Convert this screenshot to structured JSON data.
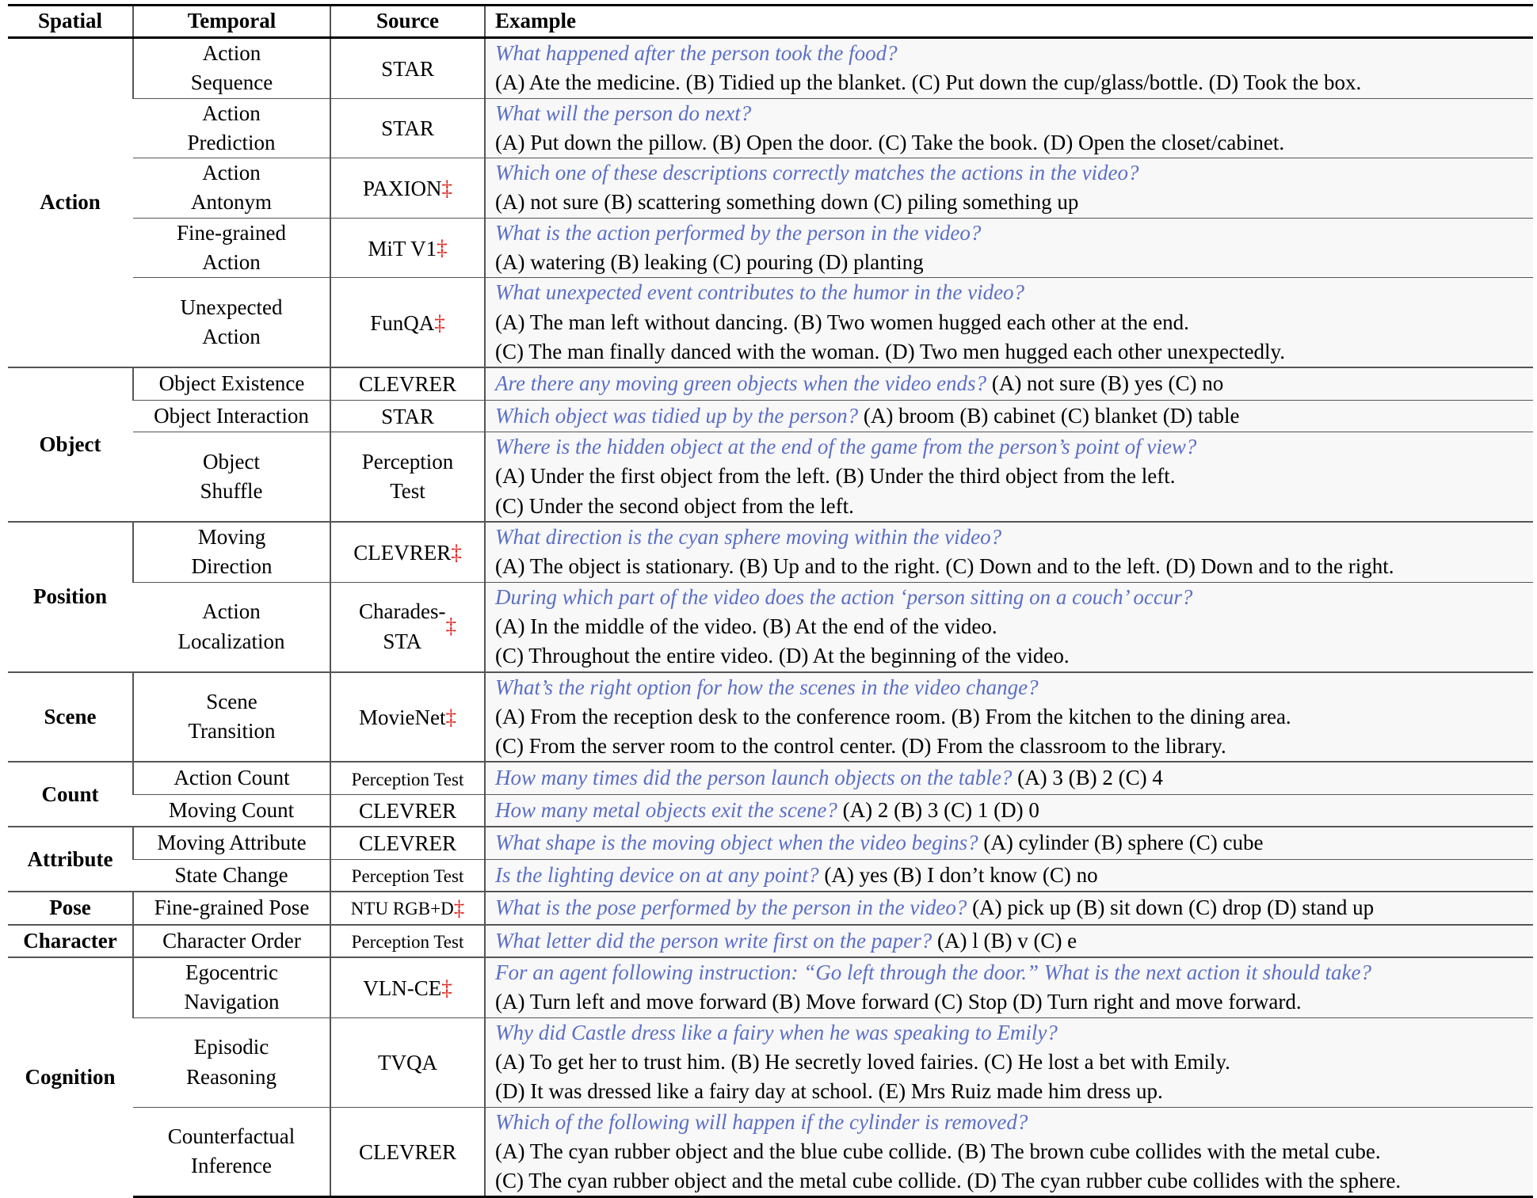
{
  "header": {
    "spatial": "Spatial",
    "temporal": "Temporal",
    "source": "Source",
    "example": "Example"
  },
  "dagger": "‡",
  "colors": {
    "question": "#5a6ec6",
    "dagger": "#e0201a",
    "example_bg": "#f8f8f8"
  },
  "groups": [
    {
      "spatial": "Action",
      "rows": [
        {
          "temporal": [
            "Action",
            "Sequence"
          ],
          "source": [
            "STAR"
          ],
          "dagger": false,
          "question": "What happened after the person took the food?",
          "options": [
            "(A) Ate the medicine. (B) Tidied up the blanket. (C) Put down the cup/glass/bottle. (D) Took the box."
          ]
        },
        {
          "temporal": [
            "Action",
            "Prediction"
          ],
          "source": [
            "STAR"
          ],
          "dagger": false,
          "question": "What will the person do next?",
          "options": [
            "(A) Put down the pillow. (B) Open the door. (C) Take the book. (D) Open the closet/cabinet."
          ]
        },
        {
          "temporal": [
            "Action",
            "Antonym"
          ],
          "source": [
            "PAXION"
          ],
          "dagger": true,
          "question": "Which one of these descriptions correctly matches the actions in the video?",
          "options": [
            "(A) not sure (B) scattering something down (C) piling something up"
          ]
        },
        {
          "temporal": [
            "Fine-grained",
            "Action"
          ],
          "source": [
            "MiT V1"
          ],
          "dagger": true,
          "question": "What is the action performed by the person in the video?",
          "options": [
            "(A) watering (B) leaking (C) pouring (D) planting"
          ]
        },
        {
          "temporal": [
            "Unexpected",
            "Action"
          ],
          "source": [
            "FunQA"
          ],
          "dagger": true,
          "question": "What unexpected event contributes to the humor in the video?",
          "options": [
            "(A) The man left without dancing. (B) Two women hugged each other at the end.",
            "(C) The man finally danced with the woman. (D) Two men hugged each other unexpectedly."
          ]
        }
      ]
    },
    {
      "spatial": "Object",
      "rows": [
        {
          "temporal": [
            "Object Existence"
          ],
          "source": [
            "CLEVRER"
          ],
          "dagger": false,
          "inline": true,
          "question": "Are there any moving green objects when the video ends?",
          "options": [
            "(A) not sure (B) yes (C) no"
          ]
        },
        {
          "temporal": [
            "Object Interaction"
          ],
          "source": [
            "STAR"
          ],
          "dagger": false,
          "inline": true,
          "question": "Which object was tidied up by the person?",
          "options": [
            "(A) broom (B) cabinet (C) blanket (D) table"
          ]
        },
        {
          "temporal": [
            "Object",
            "Shuffle"
          ],
          "source": [
            "Perception",
            "Test"
          ],
          "dagger": false,
          "question": "Where is the hidden object at the end of the game from the person’s point of view?",
          "options": [
            "(A) Under the first object from the left. (B) Under the third object from the left.",
            "(C) Under the second object from the left."
          ]
        }
      ]
    },
    {
      "spatial": "Position",
      "rows": [
        {
          "temporal": [
            "Moving",
            "Direction"
          ],
          "source": [
            "CLEVRER"
          ],
          "dagger": true,
          "question": "What direction is the cyan sphere moving within the video?",
          "options": [
            "(A) The object is stationary. (B) Up and to the right. (C) Down and to the left. (D) Down and to the right."
          ]
        },
        {
          "temporal": [
            "Action",
            "Localization"
          ],
          "source": [
            "Charades-",
            "STA"
          ],
          "dagger": true,
          "question": "During which part of the video does the action ‘person sitting on a couch’ occur?",
          "options": [
            "(A) In the middle of the video. (B) At the end of the video.",
            "(C) Throughout the entire video. (D) At the beginning of the video."
          ]
        }
      ]
    },
    {
      "spatial": "Scene",
      "rows": [
        {
          "temporal": [
            "Scene",
            "Transition"
          ],
          "source": [
            "MovieNet"
          ],
          "dagger": true,
          "question": "What’s the right option for how the scenes in the video change?",
          "options": [
            "(A) From the reception desk to the conference room. (B) From the kitchen to the dining area.",
            "(C) From the server room to the control center. (D) From the classroom to the library."
          ]
        }
      ]
    },
    {
      "spatial": "Count",
      "rows": [
        {
          "temporal": [
            "Action Count"
          ],
          "source": [
            "Perception Test"
          ],
          "small": true,
          "dagger": false,
          "inline": true,
          "question": "How many times did the person launch objects on the table?",
          "options": [
            "(A) 3 (B) 2 (C) 4"
          ]
        },
        {
          "temporal": [
            "Moving Count"
          ],
          "source": [
            "CLEVRER"
          ],
          "dagger": false,
          "inline": true,
          "question": "How many metal objects exit the scene?",
          "options": [
            "(A) 2 (B) 3 (C) 1 (D) 0"
          ]
        }
      ]
    },
    {
      "spatial": "Attribute",
      "rows": [
        {
          "temporal": [
            "Moving Attribute"
          ],
          "source": [
            "CLEVRER"
          ],
          "dagger": false,
          "inline": true,
          "question": "What shape is the moving object when the video begins?",
          "options": [
            "(A) cylinder (B) sphere (C) cube"
          ]
        },
        {
          "temporal": [
            "State Change"
          ],
          "source": [
            "Perception Test"
          ],
          "small": true,
          "dagger": false,
          "inline": true,
          "question": "Is the lighting device on at any point?",
          "options": [
            "(A) yes (B) I don’t know (C) no"
          ]
        }
      ]
    },
    {
      "spatial": "Pose",
      "rows": [
        {
          "temporal": [
            "Fine-grained Pose"
          ],
          "source": [
            "NTU RGB+D"
          ],
          "small": true,
          "dagger": true,
          "inline": true,
          "question": "What is the pose performed by the person in the video?",
          "options": [
            "(A) pick up (B) sit down (C) drop (D) stand up"
          ]
        }
      ]
    },
    {
      "spatial": "Character",
      "rows": [
        {
          "temporal": [
            "Character Order"
          ],
          "source": [
            "Perception Test"
          ],
          "small": true,
          "dagger": false,
          "inline": true,
          "question": "What letter did the person write first on the paper?",
          "options": [
            "(A) l (B) v (C) e"
          ]
        }
      ]
    },
    {
      "spatial": "Cognition",
      "rows": [
        {
          "temporal": [
            "Egocentric",
            "Navigation"
          ],
          "source": [
            "VLN-CE"
          ],
          "dagger": true,
          "question": "For an agent following instruction: “Go left through the door.” What is the next action it should take?",
          "options": [
            "(A) Turn left and move forward (B) Move forward (C) Stop (D) Turn right and move forward."
          ]
        },
        {
          "temporal": [
            "Episodic",
            "Reasoning"
          ],
          "source": [
            "TVQA"
          ],
          "dagger": false,
          "question": "Why did Castle dress like a fairy when he was speaking to Emily?",
          "options": [
            "(A) To get her to trust him. (B) He secretly loved fairies. (C) He lost a bet with Emily.",
            "(D) It was dressed like a fairy day at school. (E) Mrs Ruiz made him dress up."
          ]
        },
        {
          "temporal": [
            "Counterfactual",
            "Inference"
          ],
          "source": [
            "CLEVRER"
          ],
          "dagger": false,
          "question": "Which of the following will happen if the cylinder is removed?",
          "options": [
            "(A) The cyan rubber object and the blue cube collide. (B) The brown cube collides with the metal cube.",
            "(C) The cyan rubber object and the metal cube collide. (D) The cyan rubber cube collides with the sphere."
          ]
        }
      ]
    }
  ]
}
